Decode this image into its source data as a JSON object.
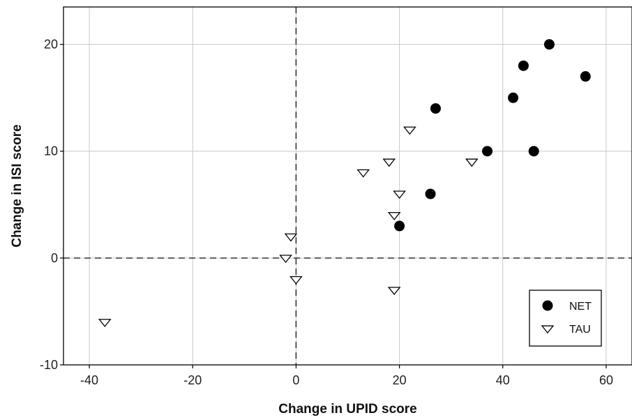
{
  "chart_data": {
    "type": "scatter",
    "title": "",
    "xlabel": "Change in UPID score",
    "ylabel": "Change in ISI score",
    "xlim": [
      -45,
      65
    ],
    "ylim": [
      -10,
      23.5
    ],
    "xticks": [
      -40,
      -20,
      0,
      20,
      40,
      60
    ],
    "yticks": [
      -10,
      0,
      10,
      20
    ],
    "grid": true,
    "reference_lines": {
      "x": 0,
      "y": 0,
      "style": "dashed"
    },
    "legend_position": "bottom-right",
    "series": [
      {
        "name": "NET",
        "marker": "filled-circle",
        "color": "#000000",
        "points": [
          {
            "x": 20,
            "y": 3
          },
          {
            "x": 26,
            "y": 6
          },
          {
            "x": 27,
            "y": 14
          },
          {
            "x": 37,
            "y": 10
          },
          {
            "x": 42,
            "y": 15
          },
          {
            "x": 44,
            "y": 18
          },
          {
            "x": 46,
            "y": 10
          },
          {
            "x": 49,
            "y": 20
          },
          {
            "x": 56,
            "y": 17
          }
        ]
      },
      {
        "name": "TAU",
        "marker": "open-down-triangle",
        "color": "#000000",
        "points": [
          {
            "x": -37,
            "y": -6
          },
          {
            "x": -2,
            "y": 0
          },
          {
            "x": -1,
            "y": 2
          },
          {
            "x": 0,
            "y": -2
          },
          {
            "x": 13,
            "y": 8
          },
          {
            "x": 18,
            "y": 9
          },
          {
            "x": 19,
            "y": 4
          },
          {
            "x": 19,
            "y": -3
          },
          {
            "x": 20,
            "y": 6
          },
          {
            "x": 22,
            "y": 12
          },
          {
            "x": 34,
            "y": 9
          }
        ]
      }
    ]
  }
}
